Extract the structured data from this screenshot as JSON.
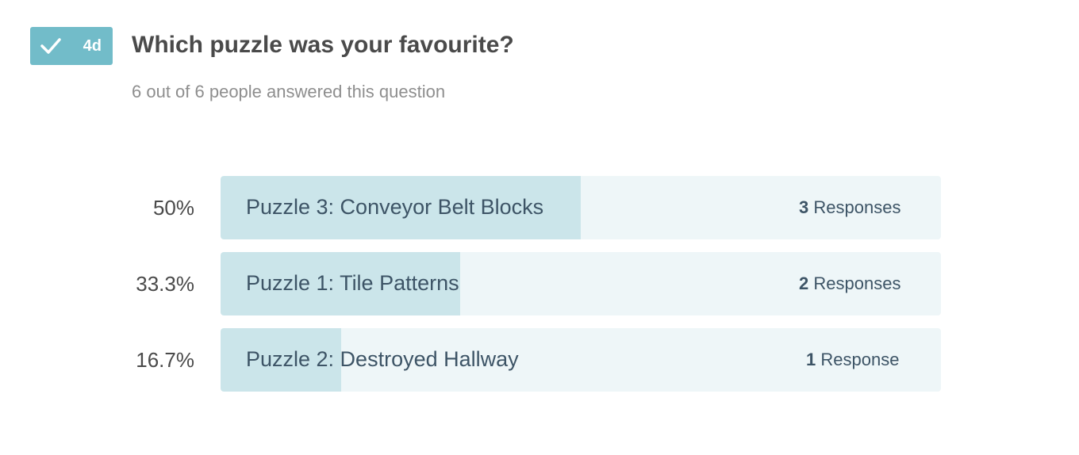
{
  "badge": {
    "icon": "check-icon",
    "age": "4d",
    "color": "#72bcc9"
  },
  "question": {
    "title": "Which puzzle was your favourite?",
    "answered_text": "6 out of 6 people answered this question"
  },
  "results": [
    {
      "percent_label": "50%",
      "fraction": 0.5,
      "option": "Puzzle 3: Conveyor Belt Blocks",
      "count": "3",
      "responses_word": "Responses"
    },
    {
      "percent_label": "33.3%",
      "fraction": 0.333,
      "option": "Puzzle 1: Tile Patterns",
      "count": "2",
      "responses_word": "Responses"
    },
    {
      "percent_label": "16.7%",
      "fraction": 0.167,
      "option": "Puzzle 2: Destroyed Hallway",
      "count": "1",
      "responses_word": "Response"
    }
  ],
  "colors": {
    "track": "#eef6f8",
    "fill": "#cbe5ea",
    "text": "#3d5466"
  }
}
